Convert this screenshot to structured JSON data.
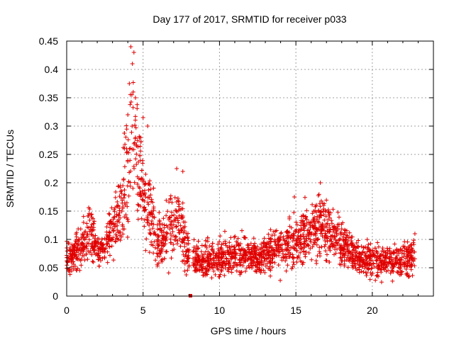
{
  "chart_data": {
    "type": "scatter",
    "title": "Day 177 of 2017, SRMTID for receiver p033",
    "xlabel": "GPS time / hours",
    "ylabel": "SRMTID / TECUs",
    "xlim": [
      0,
      24
    ],
    "ylim": [
      0,
      0.45
    ],
    "xticks": [
      0,
      5,
      10,
      15,
      20
    ],
    "yticks": [
      0,
      0.05,
      0.1,
      0.15,
      0.2,
      0.25,
      0.3,
      0.35,
      0.4,
      0.45
    ],
    "xtick_labels": [
      "0",
      "5",
      "10",
      "15",
      "20"
    ],
    "ytick_labels": [
      "0",
      "0.05",
      "0.1",
      "0.15",
      "0.2",
      "0.25",
      "0.3",
      "0.35",
      "0.4",
      "0.45"
    ],
    "grid": true,
    "marker": "+",
    "color": "#e00000",
    "envelope": {
      "description": "approximate center and spread of the point cloud over time (data units)",
      "x": [
        0,
        0.5,
        1,
        1.5,
        2,
        2.5,
        3,
        3.5,
        4,
        4.3,
        4.6,
        5,
        5.5,
        6,
        6.5,
        7,
        7.5,
        8,
        8.5,
        9,
        9.5,
        10,
        11,
        12,
        13,
        13.5,
        14,
        14.5,
        15,
        15.5,
        16,
        16.5,
        17,
        17.5,
        18,
        18.5,
        19,
        20,
        21,
        22,
        22.8
      ],
      "center": [
        0.07,
        0.075,
        0.09,
        0.11,
        0.08,
        0.09,
        0.12,
        0.16,
        0.22,
        0.28,
        0.25,
        0.19,
        0.14,
        0.09,
        0.11,
        0.13,
        0.12,
        0.07,
        0.065,
        0.06,
        0.065,
        0.07,
        0.075,
        0.07,
        0.075,
        0.08,
        0.085,
        0.09,
        0.1,
        0.11,
        0.11,
        0.13,
        0.12,
        0.11,
        0.09,
        0.08,
        0.07,
        0.065,
        0.06,
        0.065,
        0.07
      ],
      "spread": [
        0.02,
        0.02,
        0.025,
        0.04,
        0.015,
        0.02,
        0.03,
        0.04,
        0.07,
        0.08,
        0.07,
        0.05,
        0.045,
        0.025,
        0.035,
        0.04,
        0.04,
        0.02,
        0.018,
        0.018,
        0.02,
        0.02,
        0.022,
        0.02,
        0.022,
        0.025,
        0.025,
        0.028,
        0.03,
        0.03,
        0.03,
        0.035,
        0.035,
        0.03,
        0.025,
        0.022,
        0.02,
        0.02,
        0.02,
        0.02,
        0.025
      ]
    },
    "count": 2400,
    "outliers": [
      {
        "x": 4.2,
        "y": 0.44
      },
      {
        "x": 4.4,
        "y": 0.43
      },
      {
        "x": 4.3,
        "y": 0.41
      },
      {
        "x": 4.1,
        "y": 0.375
      },
      {
        "x": 4.5,
        "y": 0.35
      },
      {
        "x": 4.0,
        "y": 0.32
      },
      {
        "x": 5.0,
        "y": 0.315
      },
      {
        "x": 5.3,
        "y": 0.3
      },
      {
        "x": 7.2,
        "y": 0.225
      },
      {
        "x": 7.6,
        "y": 0.22
      },
      {
        "x": 16.6,
        "y": 0.2
      },
      {
        "x": 14.9,
        "y": 0.175
      },
      {
        "x": 8.1,
        "y": 0.0
      }
    ]
  }
}
